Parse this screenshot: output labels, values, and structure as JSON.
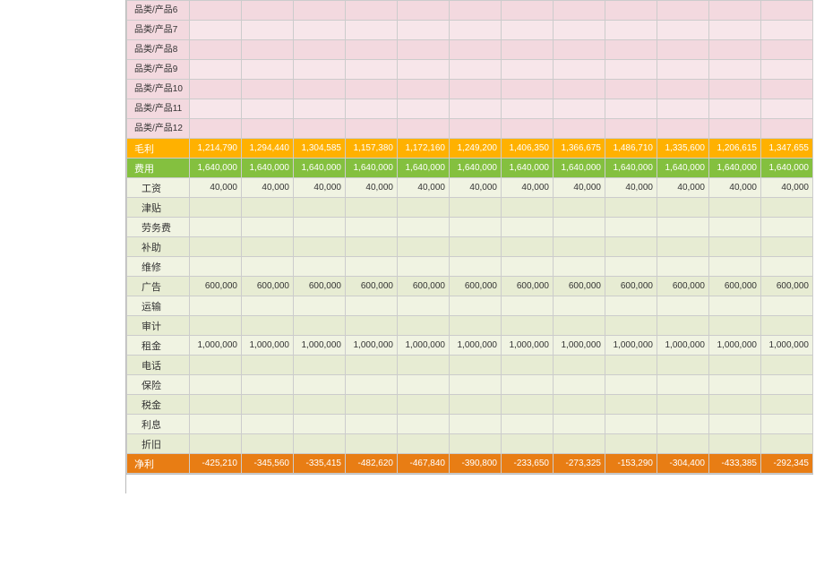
{
  "colors": {
    "pink_odd": "#f3d9df",
    "pink_even": "#f7e6ea",
    "maoli_bg": "#ffb100",
    "feiyong_bg": "#84c03f",
    "exp_odd": "#f0f3e2",
    "exp_even": "#e7ecd3",
    "jingli_bg": "#e87d14",
    "white": "#ffffff"
  },
  "productRows": [
    {
      "label": "品类/产品6"
    },
    {
      "label": "品类/产品7"
    },
    {
      "label": "品类/产品8"
    },
    {
      "label": "品类/产品9"
    },
    {
      "label": "品类/产品10"
    },
    {
      "label": "品类/产品11"
    },
    {
      "label": "品类/产品12"
    }
  ],
  "maoli": {
    "label": "毛利",
    "values": [
      "1,214,790",
      "1,294,440",
      "1,304,585",
      "1,157,380",
      "1,172,160",
      "1,249,200",
      "1,406,350",
      "1,366,675",
      "1,486,710",
      "1,335,600",
      "1,206,615",
      "1,347,655"
    ]
  },
  "feiyong": {
    "label": "费用",
    "values": [
      "1,640,000",
      "1,640,000",
      "1,640,000",
      "1,640,000",
      "1,640,000",
      "1,640,000",
      "1,640,000",
      "1,640,000",
      "1,640,000",
      "1,640,000",
      "1,640,000",
      "1,640,000"
    ]
  },
  "expenses": [
    {
      "label": "工资",
      "values": [
        "40,000",
        "40,000",
        "40,000",
        "40,000",
        "40,000",
        "40,000",
        "40,000",
        "40,000",
        "40,000",
        "40,000",
        "40,000",
        "40,000"
      ]
    },
    {
      "label": "津贴",
      "values": [
        "",
        "",
        "",
        "",
        "",
        "",
        "",
        "",
        "",
        "",
        "",
        ""
      ]
    },
    {
      "label": "劳务费",
      "values": [
        "",
        "",
        "",
        "",
        "",
        "",
        "",
        "",
        "",
        "",
        "",
        ""
      ]
    },
    {
      "label": "补助",
      "values": [
        "",
        "",
        "",
        "",
        "",
        "",
        "",
        "",
        "",
        "",
        "",
        ""
      ]
    },
    {
      "label": "维修",
      "values": [
        "",
        "",
        "",
        "",
        "",
        "",
        "",
        "",
        "",
        "",
        "",
        ""
      ]
    },
    {
      "label": "广告",
      "values": [
        "600,000",
        "600,000",
        "600,000",
        "600,000",
        "600,000",
        "600,000",
        "600,000",
        "600,000",
        "600,000",
        "600,000",
        "600,000",
        "600,000"
      ]
    },
    {
      "label": "运输",
      "values": [
        "",
        "",
        "",
        "",
        "",
        "",
        "",
        "",
        "",
        "",
        "",
        ""
      ]
    },
    {
      "label": "审计",
      "values": [
        "",
        "",
        "",
        "",
        "",
        "",
        "",
        "",
        "",
        "",
        "",
        ""
      ]
    },
    {
      "label": "租金",
      "values": [
        "1,000,000",
        "1,000,000",
        "1,000,000",
        "1,000,000",
        "1,000,000",
        "1,000,000",
        "1,000,000",
        "1,000,000",
        "1,000,000",
        "1,000,000",
        "1,000,000",
        "1,000,000"
      ]
    },
    {
      "label": "电话",
      "values": [
        "",
        "",
        "",
        "",
        "",
        "",
        "",
        "",
        "",
        "",
        "",
        ""
      ]
    },
    {
      "label": "保险",
      "values": [
        "",
        "",
        "",
        "",
        "",
        "",
        "",
        "",
        "",
        "",
        "",
        ""
      ]
    },
    {
      "label": "税金",
      "values": [
        "",
        "",
        "",
        "",
        "",
        "",
        "",
        "",
        "",
        "",
        "",
        ""
      ]
    },
    {
      "label": "利息",
      "values": [
        "",
        "",
        "",
        "",
        "",
        "",
        "",
        "",
        "",
        "",
        "",
        ""
      ]
    },
    {
      "label": "折旧",
      "values": [
        "",
        "",
        "",
        "",
        "",
        "",
        "",
        "",
        "",
        "",
        "",
        ""
      ]
    }
  ],
  "jingli": {
    "label": "净利",
    "values": [
      "-425,210",
      "-345,560",
      "-335,415",
      "-482,620",
      "-467,840",
      "-390,800",
      "-233,650",
      "-273,325",
      "-153,290",
      "-304,400",
      "-433,385",
      "-292,345"
    ]
  }
}
